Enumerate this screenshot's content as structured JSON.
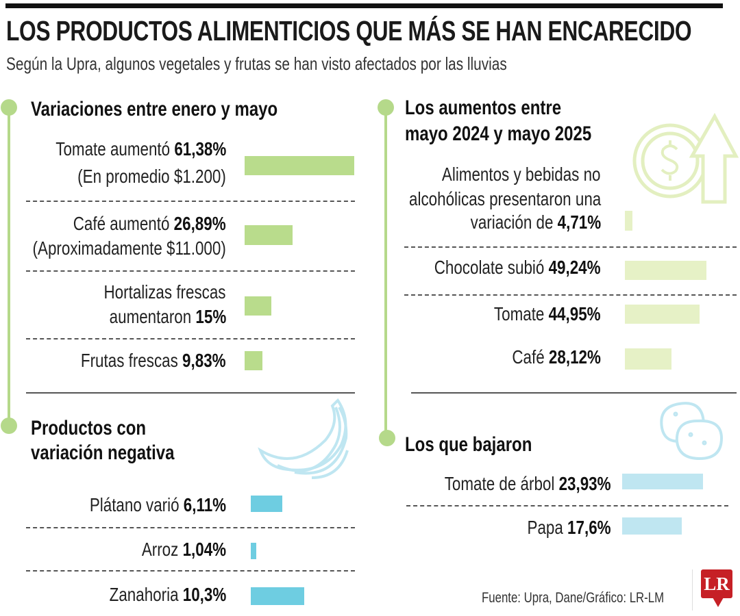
{
  "title": "LOS PRODUCTOS ALIMENTICIOS QUE MÁS SE HAN ENCARECIDO",
  "subtitle": "Según la Upra, algunos vegetales y frutas se han visto afectados por las lluvias",
  "colors": {
    "green_bar": "#b9dc8c",
    "light_green_bar": "#e6f1c6",
    "blue_bar": "#6ecde1",
    "light_blue_bar": "#bfe6f1",
    "timeline": "#b5d98a",
    "logo": "#c62026"
  },
  "sections": [
    {
      "heading_lines": [
        "Variaciones entre enero y mayo"
      ],
      "rows": [
        {
          "lines": [
            {
              "text": "Tomate aumentó ",
              "bold": "61,38%"
            },
            {
              "text": "(En promedio $1.200)"
            }
          ]
        },
        {
          "lines": [
            {
              "text": "Café aumentó ",
              "bold": "26,89%"
            },
            {
              "text": "(Aproximadamente $11.000)"
            }
          ]
        },
        {
          "lines": [
            {
              "text": "Hortalizas frescas"
            },
            {
              "text": "aumentaron ",
              "bold": "15%"
            }
          ]
        },
        {
          "lines": [
            {
              "text": "Frutas frescas ",
              "bold": "9,83%"
            }
          ]
        }
      ]
    },
    {
      "heading_lines": [
        "Productos con",
        "variación negativa"
      ],
      "icon": "banana-icon",
      "rows": [
        {
          "lines": [
            {
              "text": "Plátano varió ",
              "bold": "6,11%"
            }
          ]
        },
        {
          "lines": [
            {
              "text": "Arroz ",
              "bold": "1,04%"
            }
          ]
        },
        {
          "lines": [
            {
              "text": "Zanahoria ",
              "bold": "10,3%"
            }
          ]
        }
      ]
    },
    {
      "heading_lines": [
        "Los aumentos entre",
        "mayo 2024 y mayo 2025"
      ],
      "icon": "dollar-coin-arrow-up-icon",
      "rows": [
        {
          "lines": [
            {
              "text": "Alimentos y bebidas no"
            },
            {
              "text": "alcohólicas presentaron una"
            },
            {
              "text": "variación de ",
              "bold": "4,71%"
            }
          ]
        },
        {
          "lines": [
            {
              "text": "Chocolate subió ",
              "bold": "49,24%"
            }
          ]
        },
        {
          "lines": [
            {
              "text": "Tomate ",
              "bold": "44,95%"
            }
          ]
        },
        {
          "lines": [
            {
              "text": "Café ",
              "bold": "28,12%"
            }
          ]
        }
      ]
    },
    {
      "heading_lines": [
        "Los que bajaron"
      ],
      "icon": "potato-icon",
      "rows": [
        {
          "lines": [
            {
              "text": "Tomate de árbol ",
              "bold": "23,93%"
            }
          ]
        },
        {
          "lines": [
            {
              "text": "Papa ",
              "bold": "17,6%"
            }
          ]
        }
      ]
    }
  ],
  "chart_data": [
    {
      "type": "bar",
      "orientation": "horizontal",
      "title": "Variaciones entre enero y mayo",
      "categories": [
        "Tomate",
        "Café",
        "Hortalizas frescas",
        "Frutas frescas"
      ],
      "values": [
        61.38,
        26.89,
        15,
        9.83
      ],
      "unit": "%",
      "color": "#b9dc8c"
    },
    {
      "type": "bar",
      "orientation": "horizontal",
      "title": "Productos con variación negativa",
      "categories": [
        "Plátano",
        "Arroz",
        "Zanahoria"
      ],
      "values": [
        6.11,
        1.04,
        10.3
      ],
      "unit": "%",
      "color": "#6ecde1"
    },
    {
      "type": "bar",
      "orientation": "horizontal",
      "title": "Los aumentos entre mayo 2024 y mayo 2025",
      "categories": [
        "Alimentos y bebidas no alcohólicas",
        "Chocolate",
        "Tomate",
        "Café"
      ],
      "values": [
        4.71,
        49.24,
        44.95,
        28.12
      ],
      "unit": "%",
      "color": "#e6f1c6"
    },
    {
      "type": "bar",
      "orientation": "horizontal",
      "title": "Los que bajaron",
      "categories": [
        "Tomate de árbol",
        "Papa"
      ],
      "values": [
        23.93,
        17.6
      ],
      "unit": "%",
      "color": "#bfe6f1"
    }
  ],
  "source": "Fuente: Upra, Dane/Gráfico: LR-LM",
  "logo_text": "LR"
}
